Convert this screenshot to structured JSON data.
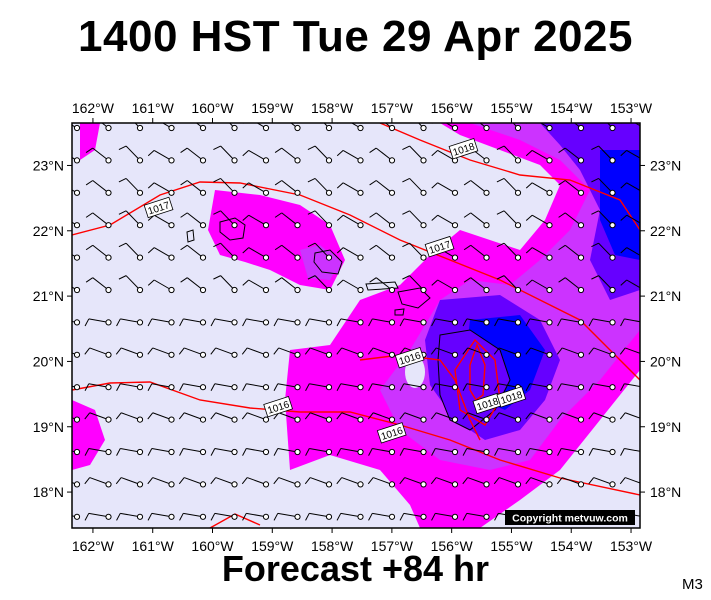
{
  "title": "1400 HST Tue 29 Apr 2025",
  "subtitle": "Forecast +84 hr",
  "model_tag": "M3",
  "copyright": "Copyright metvuw.com",
  "map": {
    "longitude_labels": [
      "162°W",
      "161°W",
      "160°W",
      "159°W",
      "158°W",
      "157°W",
      "156°W",
      "155°W",
      "154°W",
      "153°W"
    ],
    "latitude_labels": [
      "23°N",
      "22°N",
      "21°N",
      "20°N",
      "19°N",
      "18°N"
    ],
    "lon_range": [
      -162,
      -153
    ],
    "lat_range": [
      17.5,
      23.6
    ],
    "colors": {
      "background_fill": "#e6e6fa",
      "precip_light": "#ff00ff",
      "precip_mid": "#cc33ff",
      "precip_heavy": "#6600ff",
      "precip_max": "#0000ff",
      "isobar": "#ff0000",
      "land": "#000000"
    },
    "isobars": [
      {
        "label": "1018",
        "lon": -155.8,
        "lat": 23.25
      },
      {
        "label": "1017",
        "lon": -160.9,
        "lat": 22.35
      },
      {
        "label": "1017",
        "lon": -156.2,
        "lat": 21.75
      },
      {
        "label": "1016",
        "lon": -156.7,
        "lat": 20.05
      },
      {
        "label": "1016",
        "lon": -158.9,
        "lat": 19.3
      },
      {
        "label": "1016",
        "lon": -157.0,
        "lat": 18.9
      },
      {
        "label": "1018",
        "lon": -155.4,
        "lat": 19.35
      },
      {
        "label": "1018",
        "lon": -155.0,
        "lat": 19.45
      }
    ]
  }
}
